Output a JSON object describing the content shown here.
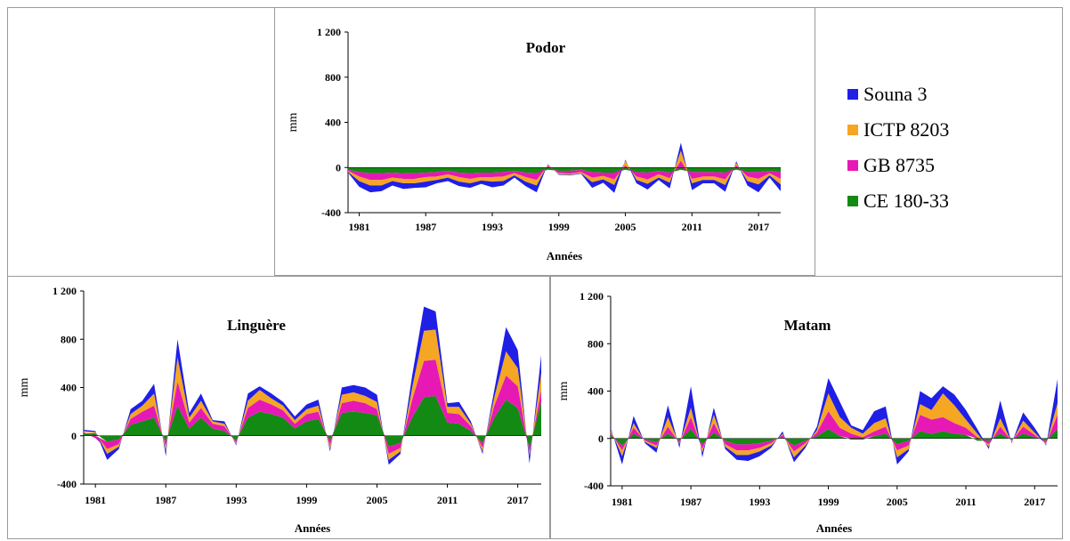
{
  "legend": {
    "items": [
      {
        "label": "Souna 3",
        "color": "#1f1fe6"
      },
      {
        "label": "ICTP 8203",
        "color": "#f5a623"
      },
      {
        "label": "GB 8735",
        "color": "#e619b4"
      },
      {
        "label": "CE 180-33",
        "color": "#138a13"
      }
    ]
  },
  "chart_data": [
    {
      "type": "area",
      "title": "Podor",
      "xlabel": "Années",
      "ylabel": "mm",
      "ylim": [
        -400,
        1200
      ],
      "yticks": [
        "1 200",
        "800",
        "400",
        "0",
        "-400"
      ],
      "xticks": [
        "1981",
        "1987",
        "1993",
        "1999",
        "2005",
        "2011",
        "2017"
      ],
      "x": [
        1980,
        1981,
        1982,
        1983,
        1984,
        1985,
        1986,
        1987,
        1988,
        1989,
        1990,
        1991,
        1992,
        1993,
        1994,
        1995,
        1996,
        1997,
        1998,
        1999,
        2000,
        2001,
        2002,
        2003,
        2004,
        2005,
        2006,
        2007,
        2008,
        2009,
        2010,
        2011,
        2012,
        2013,
        2014,
        2015,
        2016,
        2017,
        2018,
        2019
      ],
      "series": [
        {
          "name": "CE 180-33",
          "values": [
            -20,
            -40,
            -50,
            -50,
            -45,
            -50,
            -50,
            -45,
            -40,
            -30,
            -45,
            -50,
            -45,
            -45,
            -40,
            -30,
            -45,
            -50,
            -20,
            -30,
            -30,
            -20,
            -40,
            -45,
            -45,
            -20,
            -40,
            -45,
            -30,
            -45,
            -20,
            -40,
            -40,
            -40,
            -45,
            -20,
            -40,
            -40,
            -30,
            -40
          ]
        },
        {
          "name": "GB 8735",
          "values": [
            -10,
            -40,
            -60,
            -60,
            -45,
            -50,
            -50,
            -40,
            -40,
            -30,
            -40,
            -50,
            -40,
            -40,
            -40,
            -20,
            -40,
            -60,
            15,
            -20,
            -25,
            -20,
            -50,
            -30,
            -60,
            20,
            -40,
            -60,
            -30,
            -50,
            60,
            -60,
            -40,
            -40,
            -60,
            20,
            -40,
            -60,
            -20,
            -60
          ]
        },
        {
          "name": "ICTP 8203",
          "values": [
            -10,
            -40,
            -50,
            -50,
            -30,
            -40,
            -40,
            -40,
            -30,
            -30,
            -40,
            -40,
            -30,
            -40,
            -40,
            -20,
            -40,
            -50,
            10,
            -10,
            -10,
            -10,
            -40,
            -30,
            -50,
            40,
            -30,
            -40,
            -30,
            -40,
            90,
            -40,
            -30,
            -30,
            -50,
            20,
            -40,
            -50,
            -20,
            -50
          ]
        },
        {
          "name": "Souna 3",
          "values": [
            -5,
            -50,
            -60,
            -50,
            -40,
            -50,
            -40,
            -50,
            -30,
            -30,
            -40,
            -40,
            -30,
            -50,
            -40,
            -20,
            -40,
            -60,
            5,
            -5,
            -5,
            -5,
            -50,
            -30,
            -70,
            10,
            -30,
            -50,
            -20,
            -50,
            70,
            -60,
            -30,
            -30,
            -60,
            15,
            -40,
            -70,
            -20,
            -60
          ]
        }
      ]
    },
    {
      "type": "area",
      "title": "Linguère",
      "xlabel": "Années",
      "ylabel": "mm",
      "ylim": [
        -400,
        1200
      ],
      "yticks": [
        "1 200",
        "800",
        "400",
        "0",
        "-400"
      ],
      "xticks": [
        "1981",
        "1987",
        "1993",
        "1999",
        "2005",
        "2011",
        "2017"
      ],
      "x": [
        1980,
        1981,
        1982,
        1983,
        1984,
        1985,
        1986,
        1987,
        1988,
        1989,
        1990,
        1991,
        1992,
        1993,
        1994,
        1995,
        1996,
        1997,
        1998,
        1999,
        2000,
        2001,
        2002,
        2003,
        2004,
        2005,
        2006,
        2007,
        2008,
        2009,
        2010,
        2011,
        2012,
        2013,
        2014,
        2015,
        2016,
        2017,
        2018,
        2019
      ],
      "series": [
        {
          "name": "CE 180-33",
          "values": [
            20,
            20,
            -50,
            -30,
            90,
            120,
            150,
            -50,
            250,
            60,
            150,
            60,
            40,
            -40,
            150,
            200,
            180,
            150,
            60,
            120,
            140,
            -40,
            190,
            200,
            190,
            170,
            -90,
            -60,
            150,
            320,
            330,
            110,
            100,
            40,
            -60,
            150,
            300,
            230,
            -100,
            280
          ]
        },
        {
          "name": "GB 8735",
          "values": [
            10,
            -20,
            -60,
            -40,
            50,
            80,
            100,
            -40,
            200,
            50,
            80,
            40,
            40,
            -20,
            80,
            100,
            80,
            60,
            40,
            60,
            60,
            -40,
            80,
            90,
            80,
            50,
            -60,
            -40,
            150,
            300,
            300,
            80,
            80,
            40,
            -40,
            100,
            200,
            180,
            -40,
            100
          ]
        },
        {
          "name": "ICTP 8203",
          "values": [
            10,
            10,
            -40,
            -20,
            40,
            50,
            100,
            -40,
            200,
            40,
            60,
            20,
            20,
            -10,
            60,
            80,
            50,
            40,
            30,
            40,
            50,
            -30,
            70,
            70,
            60,
            60,
            -50,
            -30,
            100,
            250,
            250,
            50,
            60,
            20,
            -30,
            70,
            200,
            150,
            -30,
            140
          ]
        },
        {
          "name": "Souna 3",
          "values": [
            10,
            10,
            -50,
            -20,
            40,
            40,
            80,
            -40,
            150,
            40,
            60,
            10,
            20,
            -10,
            60,
            30,
            40,
            30,
            30,
            40,
            50,
            -20,
            60,
            60,
            70,
            60,
            -40,
            -20,
            100,
            200,
            150,
            30,
            40,
            20,
            -20,
            60,
            200,
            150,
            -60,
            150
          ]
        }
      ]
    },
    {
      "type": "area",
      "title": "Matam",
      "xlabel": "Années",
      "ylabel": "mm",
      "ylim": [
        -400,
        1200
      ],
      "yticks": [
        "1 200",
        "800",
        "400",
        "0",
        "-400"
      ],
      "xticks": [
        "1981",
        "1987",
        "1993",
        "1999",
        "2005",
        "2011",
        "2017"
      ],
      "x": [
        1980,
        1981,
        1982,
        1983,
        1984,
        1985,
        1986,
        1987,
        1988,
        1989,
        1990,
        1991,
        1992,
        1993,
        1994,
        1995,
        1996,
        1997,
        1998,
        1999,
        2000,
        2001,
        2002,
        2003,
        2004,
        2005,
        2006,
        2007,
        2008,
        2009,
        2010,
        2011,
        2012,
        2013,
        2014,
        2015,
        2016,
        2017,
        2018,
        2019
      ],
      "series": [
        {
          "name": "CE 180-33",
          "values": [
            30,
            -60,
            40,
            -10,
            -30,
            40,
            -20,
            80,
            -50,
            50,
            -20,
            -50,
            -50,
            -40,
            -20,
            10,
            -60,
            -20,
            20,
            80,
            20,
            -10,
            -10,
            20,
            40,
            -50,
            -20,
            60,
            40,
            60,
            40,
            30,
            -20,
            -20,
            40,
            -10,
            40,
            10,
            -20,
            80
          ]
        },
        {
          "name": "GB 8735",
          "values": [
            20,
            -40,
            50,
            -10,
            -30,
            60,
            -20,
            100,
            -40,
            80,
            -30,
            -50,
            -50,
            -40,
            -20,
            20,
            -50,
            -20,
            30,
            150,
            70,
            40,
            10,
            40,
            60,
            -50,
            -40,
            140,
            120,
            120,
            90,
            60,
            10,
            -30,
            60,
            -10,
            60,
            20,
            -20,
            120
          ]
        },
        {
          "name": "ICTP 8203",
          "values": [
            20,
            -50,
            40,
            -10,
            -20,
            80,
            -10,
            80,
            -30,
            70,
            -20,
            -40,
            -40,
            -30,
            -20,
            10,
            -50,
            -20,
            20,
            150,
            90,
            50,
            30,
            70,
            70,
            -60,
            -30,
            90,
            80,
            200,
            150,
            70,
            30,
            -20,
            70,
            -10,
            50,
            20,
            -10,
            100
          ]
        },
        {
          "name": "Souna 3",
          "values": [
            20,
            -70,
            60,
            -10,
            -40,
            100,
            -30,
            180,
            -40,
            60,
            -20,
            -40,
            -50,
            -40,
            -20,
            20,
            -40,
            -20,
            30,
            130,
            130,
            20,
            30,
            100,
            100,
            -60,
            -20,
            110,
            100,
            60,
            90,
            80,
            40,
            -20,
            150,
            -10,
            70,
            40,
            -10,
            200
          ]
        }
      ]
    }
  ]
}
